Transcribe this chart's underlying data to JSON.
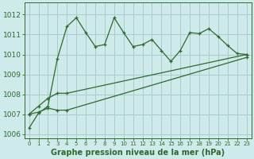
{
  "bg_color": "#ceeaea",
  "grid_color": "#aacccc",
  "line_color": "#2d6a2d",
  "title": "Graphe pression niveau de la mer (hPa)",
  "xlim": [
    -0.5,
    23.5
  ],
  "ylim": [
    1005.8,
    1012.6
  ],
  "yticks": [
    1006,
    1007,
    1008,
    1009,
    1010,
    1011,
    1012
  ],
  "xticks": [
    0,
    1,
    2,
    3,
    4,
    5,
    6,
    7,
    8,
    9,
    10,
    11,
    12,
    13,
    14,
    15,
    16,
    17,
    18,
    19,
    20,
    21,
    22,
    23
  ],
  "series1_x": [
    0,
    1,
    2,
    3,
    4,
    5,
    6,
    7,
    8,
    9,
    10,
    11,
    12,
    13,
    14,
    15,
    16,
    17,
    18,
    19,
    20,
    21,
    22,
    23
  ],
  "series1_y": [
    1006.3,
    1007.05,
    1007.4,
    1009.8,
    1011.4,
    1011.85,
    1011.1,
    1010.4,
    1010.5,
    1011.85,
    1011.1,
    1010.4,
    1010.5,
    1010.75,
    1010.2,
    1009.65,
    1010.2,
    1011.1,
    1011.05,
    1011.3,
    1010.9,
    1010.45,
    1010.05,
    1010.0
  ],
  "series2_x": [
    0,
    1,
    2,
    3,
    4,
    23
  ],
  "series2_y": [
    1007.0,
    1007.4,
    1007.8,
    1008.05,
    1008.05,
    1010.0
  ],
  "series3_x": [
    0,
    1,
    2,
    3,
    4,
    23
  ],
  "series3_y": [
    1007.0,
    1007.1,
    1007.3,
    1007.2,
    1007.2,
    1009.85
  ],
  "ytick_fontsize": 6.5,
  "xtick_fontsize": 5.0,
  "xlabel_fontsize": 7.0
}
